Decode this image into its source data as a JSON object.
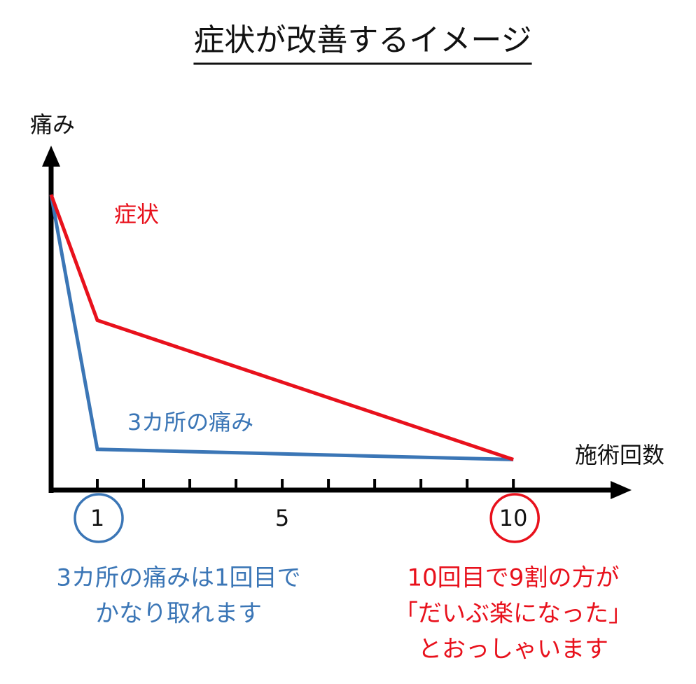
{
  "chart_data": {
    "type": "line",
    "title": "症状が改善するイメージ",
    "y_label": "痛み",
    "x_label": "施術回数",
    "x": [
      0,
      1,
      10
    ],
    "series": [
      {
        "name": "症状",
        "color": "#e8111c",
        "values": [
          87,
          50,
          9
        ]
      },
      {
        "name": "3カ所の痛み",
        "color": "#3b76b6",
        "values": [
          87,
          12,
          9
        ]
      }
    ],
    "xlim": [
      0,
      12.3
    ],
    "ylim": [
      0,
      100
    ],
    "xticks": [
      1,
      5,
      10
    ],
    "minor_xticks": [
      2,
      3,
      4,
      6,
      7,
      8,
      9
    ],
    "annotations": [
      {
        "lines": [
          "3カ所の痛みは1回目で",
          "かなり取れます"
        ],
        "color": "#3b76b6",
        "highlight_tick": 1
      },
      {
        "lines": [
          "10回目で9割の方が",
          "「だいぶ楽になった」",
          "とおっしゃいます"
        ],
        "color": "#e8111c",
        "highlight_tick": 10
      }
    ]
  }
}
